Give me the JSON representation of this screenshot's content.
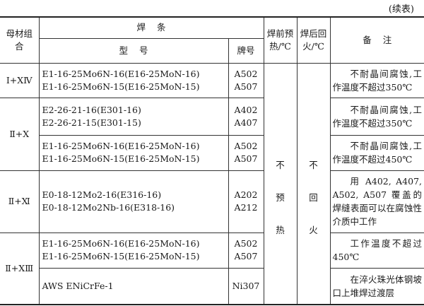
{
  "continued_label": "(续表)",
  "headers": {
    "base_metal": "母材组合",
    "electrode": "焊    条",
    "type": "型    号",
    "brand": "牌号",
    "preheat": "焊前预热/℃",
    "temper": "焊后回火/℃",
    "remarks": "备    注"
  },
  "merged": {
    "preheat": [
      "不",
      "预",
      "热"
    ],
    "temper": [
      "不",
      "回",
      "火"
    ]
  },
  "rows": [
    {
      "base": "Ⅰ+ⅩⅣ",
      "types": [
        "E1-16-25Mo6N-16(E16-25MoN-16)",
        "E1-16-25Mo6N-15(E16-25MoN-15)"
      ],
      "brands": [
        "A502",
        "A507"
      ],
      "note": "不耐晶间腐蚀,工作温度不超过350℃"
    },
    {
      "base": "Ⅱ+Ⅹ",
      "types": [
        "E2-26-21-16(E301-16)",
        "E2-26-21-15(E301-15)"
      ],
      "brands": [
        "A402",
        "A407"
      ],
      "note": "不耐晶间腐蚀,工作温度不超过350℃"
    },
    {
      "types": [
        "E1-16-25Mo6N-16(E16-25MoN-16)",
        "E1-16-25Mo6N-15(E16-25MoN-15)"
      ],
      "brands": [
        "A502",
        "A507"
      ],
      "note": "不耐晶间腐蚀,工作温度不超过450℃"
    },
    {
      "base": "Ⅱ+Ⅺ",
      "types": [
        "E0-18-12Mo2-16(E316-16)",
        "E0-18-12Mo2Nb-16(E318-16)"
      ],
      "brands": [
        "A202",
        "A212"
      ],
      "note": "用 A402, A407, A502, A507 覆盖的焊缝表面可以在腐蚀性介质中工作"
    },
    {
      "base": "Ⅱ+ⅩⅢ",
      "types": [
        "E1-16-25Mo6N-16(E16-25MoN-16)",
        "E1-16-25Mo6N-15(E16-25MoN-15)"
      ],
      "brands": [
        "A502",
        "A507"
      ],
      "note": "工作温度不超过450℃"
    },
    {
      "types": [
        "AWS ENiCrFe-1"
      ],
      "brands": [
        "Ni307"
      ],
      "note": "在淬火珠光体钢坡口上堆焊过渡层"
    }
  ]
}
